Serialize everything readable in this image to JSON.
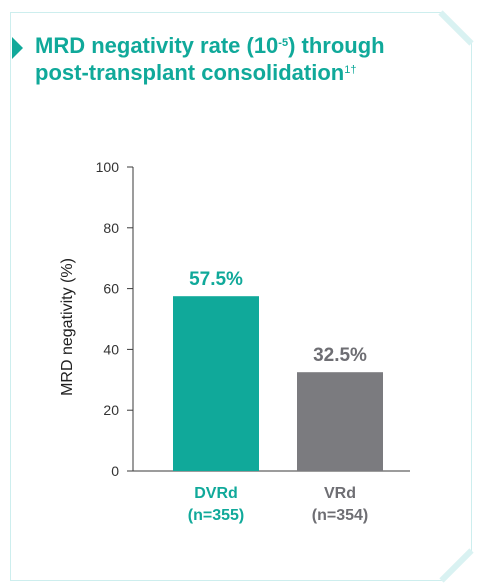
{
  "title": {
    "line1_prefix": "MRD negativity rate (10",
    "exponent": "-5",
    "line1_suffix": ") through",
    "line2": "post-transplant consolidation",
    "refs": "1†"
  },
  "colors": {
    "accent": "#10a99a",
    "grey_bar": "#7b7b7f",
    "frame": "#cdeeee",
    "axis": "#3a3a3a"
  },
  "chart_data": {
    "type": "bar",
    "ylabel": "MRD negativity (%)",
    "ylim": [
      0,
      100
    ],
    "yticks": [
      "0",
      "20",
      "40",
      "60",
      "80",
      "100"
    ],
    "grid": false,
    "categories": [
      {
        "name": "DVRd",
        "n": "(n=355)"
      },
      {
        "name": "VRd",
        "n": "(n=354)"
      }
    ],
    "values": [
      57.5,
      32.5
    ],
    "value_labels": [
      "57.5%",
      "32.5%"
    ],
    "bar_colors": [
      "#10a99a",
      "#7b7b7f"
    ],
    "label_colors": [
      "#10a99a",
      "#6e6e73"
    ]
  }
}
